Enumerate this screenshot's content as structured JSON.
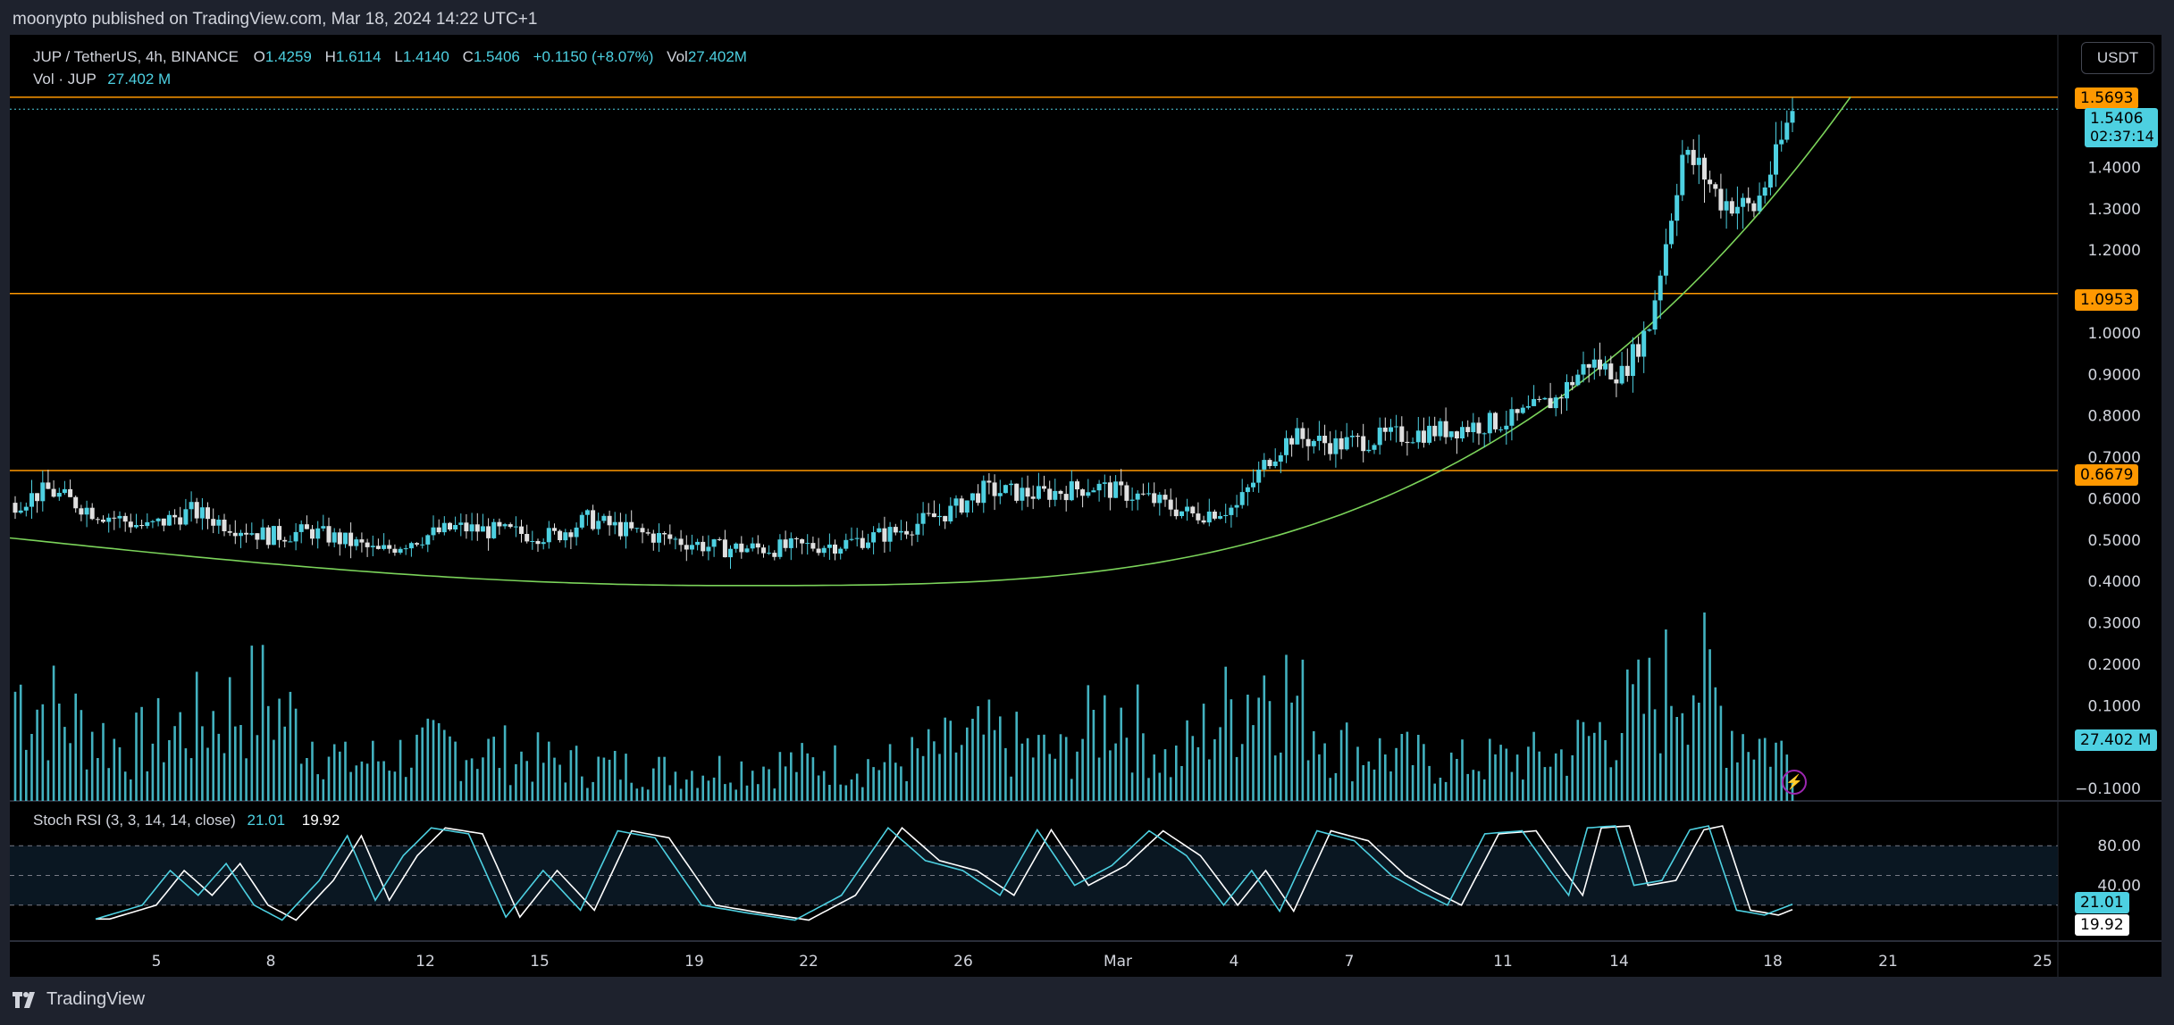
{
  "caption": "moonypto published on TradingView.com, Mar 18, 2024 14:22 UTC+1",
  "legend": {
    "symbol": "JUP / TetherUS, 4h, BINANCE",
    "open_label": "O",
    "open": "1.4259",
    "high_label": "H",
    "high": "1.6114",
    "low_label": "L",
    "low": "1.4140",
    "close_label": "C",
    "close": "1.5406",
    "change": "+0.1150 (+8.07%)",
    "vol_label": "Vol",
    "vol": "27.402M",
    "vol_series_label": "Vol · JUP",
    "vol_series_value": "27.402 M"
  },
  "currency": "USDT",
  "price_tags": {
    "level_top": "1.5693",
    "last_price": "1.5406",
    "countdown": "02:37:14",
    "level_mid": "1.0953",
    "level_low": "0.6679",
    "volume_tag": "27.402 M",
    "stoch_k": "21.01",
    "stoch_d": "19.92"
  },
  "stoch_legend": {
    "name": "Stoch RSI (3, 3, 14, 14, close)",
    "k": "21.01",
    "d": "19.92"
  },
  "watermark": "TradingView",
  "colors": {
    "up": "#4dd0e1",
    "down": "#e0e0e0",
    "level": "#ff9800",
    "curve": "#7bd35a",
    "stoch_k": "#4dd0e1",
    "stoch_d": "#ffffff"
  },
  "icons": {
    "lightning": "lightning-icon",
    "logo": "tradingview-logo-icon"
  },
  "chart_data": {
    "type": "candlestick",
    "title": "JUP / TetherUS, 4h, BINANCE",
    "ylim": [
      -0.13,
      1.72
    ],
    "y_ticks": [
      "1.4000",
      "1.3000",
      "1.2000",
      "1.0000",
      "0.9000",
      "0.8000",
      "0.7000",
      "0.6000",
      "0.5000",
      "0.4000",
      "0.3000",
      "0.2000",
      "0.1000",
      "−0.1000"
    ],
    "x_ticks": [
      "5",
      "8",
      "12",
      "15",
      "19",
      "22",
      "26",
      "Mar",
      "4",
      "7",
      "11",
      "14",
      "18",
      "21",
      "25"
    ],
    "horizontal_levels": [
      1.5693,
      1.0953,
      0.6679
    ],
    "last_price": 1.5406,
    "price_anchors": [
      [
        0,
        0.59
      ],
      [
        6,
        0.62
      ],
      [
        14,
        0.57
      ],
      [
        24,
        0.53
      ],
      [
        32,
        0.57
      ],
      [
        38,
        0.54
      ],
      [
        46,
        0.51
      ],
      [
        54,
        0.52
      ],
      [
        62,
        0.49
      ],
      [
        66,
        0.47
      ],
      [
        72,
        0.5
      ],
      [
        80,
        0.53
      ],
      [
        88,
        0.52
      ],
      [
        98,
        0.51
      ],
      [
        104,
        0.55
      ],
      [
        112,
        0.52
      ],
      [
        120,
        0.5
      ],
      [
        128,
        0.48
      ],
      [
        138,
        0.48
      ],
      [
        150,
        0.49
      ],
      [
        160,
        0.52
      ],
      [
        170,
        0.57
      ],
      [
        176,
        0.62
      ],
      [
        186,
        0.61
      ],
      [
        196,
        0.63
      ],
      [
        206,
        0.6
      ],
      [
        214,
        0.56
      ],
      [
        222,
        0.58
      ],
      [
        228,
        0.7
      ],
      [
        232,
        0.75
      ],
      [
        240,
        0.73
      ],
      [
        250,
        0.75
      ],
      [
        262,
        0.77
      ],
      [
        272,
        0.79
      ],
      [
        280,
        0.84
      ],
      [
        286,
        0.93
      ],
      [
        292,
        0.9
      ],
      [
        297,
        1.02
      ],
      [
        300,
        1.22
      ],
      [
        303,
        1.43
      ],
      [
        306,
        1.4
      ],
      [
        310,
        1.32
      ],
      [
        316,
        1.3
      ],
      [
        320,
        1.42
      ],
      [
        323,
        1.5406
      ]
    ],
    "volume_anchors": [
      [
        0,
        0.3
      ],
      [
        20,
        0.14
      ],
      [
        45,
        0.28
      ],
      [
        60,
        0.1
      ],
      [
        80,
        0.15
      ],
      [
        100,
        0.1
      ],
      [
        120,
        0.08
      ],
      [
        140,
        0.1
      ],
      [
        160,
        0.1
      ],
      [
        176,
        0.17
      ],
      [
        190,
        0.12
      ],
      [
        200,
        0.26
      ],
      [
        210,
        0.1
      ],
      [
        228,
        0.35
      ],
      [
        240,
        0.15
      ],
      [
        260,
        0.1
      ],
      [
        280,
        0.12
      ],
      [
        298,
        0.27
      ],
      [
        304,
        0.38
      ],
      [
        312,
        0.2
      ],
      [
        323,
        0.12
      ]
    ],
    "stoch_anchors": [
      [
        0,
        6
      ],
      [
        10,
        20
      ],
      [
        16,
        55
      ],
      [
        22,
        30
      ],
      [
        28,
        62
      ],
      [
        34,
        20
      ],
      [
        40,
        5
      ],
      [
        48,
        45
      ],
      [
        54,
        90
      ],
      [
        60,
        25
      ],
      [
        66,
        70
      ],
      [
        72,
        98
      ],
      [
        80,
        92
      ],
      [
        88,
        8
      ],
      [
        96,
        55
      ],
      [
        104,
        15
      ],
      [
        112,
        95
      ],
      [
        120,
        88
      ],
      [
        130,
        20
      ],
      [
        140,
        12
      ],
      [
        150,
        5
      ],
      [
        160,
        30
      ],
      [
        170,
        98
      ],
      [
        178,
        65
      ],
      [
        186,
        55
      ],
      [
        194,
        30
      ],
      [
        202,
        96
      ],
      [
        210,
        40
      ],
      [
        218,
        60
      ],
      [
        226,
        95
      ],
      [
        234,
        70
      ],
      [
        242,
        20
      ],
      [
        248,
        55
      ],
      [
        254,
        14
      ],
      [
        262,
        95
      ],
      [
        270,
        85
      ],
      [
        278,
        50
      ],
      [
        284,
        34
      ],
      [
        290,
        20
      ],
      [
        298,
        92
      ],
      [
        306,
        95
      ],
      [
        312,
        55
      ],
      [
        316,
        30
      ],
      [
        320,
        98
      ],
      [
        326,
        100
      ],
      [
        330,
        40
      ],
      [
        336,
        45
      ],
      [
        342,
        96
      ],
      [
        346,
        100
      ],
      [
        352,
        15
      ],
      [
        358,
        10
      ],
      [
        364,
        21
      ]
    ],
    "stoch_levels": [
      80,
      50,
      20
    ],
    "stoch_axis_labels": [
      "80.00",
      "40.00"
    ]
  }
}
